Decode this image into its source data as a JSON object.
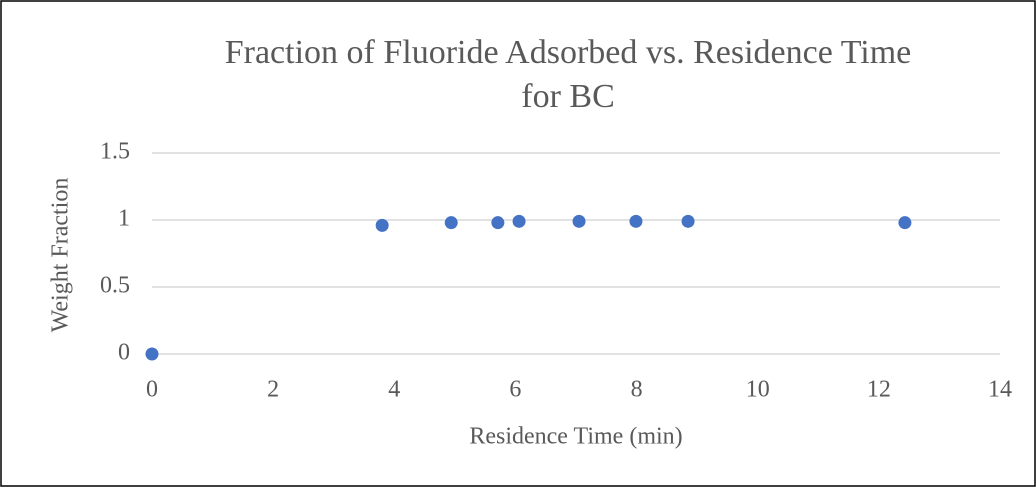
{
  "chart_data": {
    "type": "scatter",
    "title": [
      "Fraction of Fluoride Adsorbed vs. Residence Time",
      "for BC"
    ],
    "xlabel": "Residence Time (min)",
    "ylabel": "Weight Fraction",
    "x": [
      0,
      3.8,
      4.94,
      5.71,
      6.06,
      7.05,
      7.99,
      8.85,
      12.43
    ],
    "values": [
      0,
      0.96,
      0.98,
      0.98,
      0.99,
      0.99,
      0.99,
      0.99,
      0.98
    ],
    "color": "#4472c4",
    "xlim": [
      0,
      14
    ],
    "xticks": [
      0,
      2,
      4,
      6,
      8,
      10,
      12,
      14
    ],
    "ylim": [
      0,
      1.5
    ],
    "yticks": [
      0,
      0.5,
      1,
      1.5
    ],
    "grid": true
  }
}
